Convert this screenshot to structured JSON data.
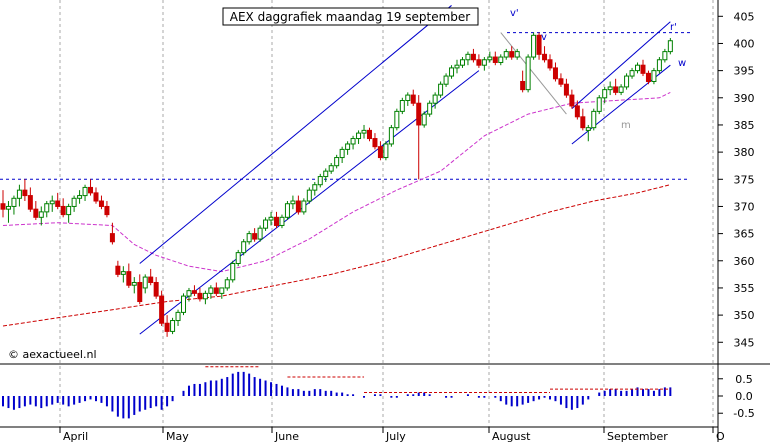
{
  "chart_data": [
    {
      "type": "candlestick",
      "title": "AEX daggrafiek maandag 19 september",
      "copyright": "© aexactueel.nl",
      "x_months": [
        "April",
        "May",
        "June",
        "July",
        "August",
        "September",
        "O"
      ],
      "y_ticks": [
        345,
        350,
        355,
        360,
        365,
        370,
        375,
        380,
        385,
        390,
        395,
        400,
        405
      ],
      "ylim": [
        341,
        408
      ],
      "grid": true,
      "annotations": [
        "v'",
        "v",
        "r'",
        "w",
        "m"
      ],
      "support_resistance_levels": [
        402,
        375
      ],
      "colors": {
        "up": "#008000",
        "down": "#cc0000",
        "moving_average_short": "#cc33cc",
        "moving_average_long": "#cc0000",
        "trendlines": "#0000cc",
        "levels": "#0000cc",
        "grid": "#aaaaaa"
      },
      "ohlc": [
        [
          370.5,
          373,
          368,
          369.5
        ],
        [
          369.5,
          371,
          367,
          370
        ],
        [
          370,
          372,
          368.5,
          371.5
        ],
        [
          371.5,
          374,
          370,
          373
        ],
        [
          373,
          375,
          371,
          372
        ],
        [
          372,
          373.5,
          369,
          369.5
        ],
        [
          369.5,
          371,
          367.5,
          368
        ],
        [
          368,
          370,
          366.5,
          369
        ],
        [
          369,
          371,
          368,
          370.5
        ],
        [
          370.5,
          372,
          369,
          371
        ],
        [
          371,
          372.5,
          369.5,
          370
        ],
        [
          370,
          371.5,
          368,
          368.5
        ],
        [
          368.5,
          370.5,
          367,
          370
        ],
        [
          370,
          372,
          369,
          371.5
        ],
        [
          371.5,
          373,
          370.5,
          372
        ],
        [
          372,
          374,
          371,
          373.5
        ],
        [
          373.5,
          375,
          372,
          372.5
        ],
        [
          372.5,
          373.5,
          370.5,
          371
        ],
        [
          371,
          372,
          369.5,
          370
        ],
        [
          370,
          371,
          368,
          368.5
        ],
        [
          365,
          367,
          363,
          363.5
        ],
        [
          359,
          360,
          357,
          357.5
        ],
        [
          357.5,
          359,
          356,
          358
        ],
        [
          358,
          359.5,
          355,
          355.5
        ],
        [
          355.5,
          357,
          354,
          356
        ],
        [
          356,
          357.5,
          352,
          352.5
        ],
        [
          355,
          357.5,
          354,
          357
        ],
        [
          357,
          358.5,
          355.5,
          356
        ],
        [
          356,
          357,
          353,
          353.5
        ],
        [
          353.5,
          354.5,
          348,
          348.5
        ],
        [
          348.5,
          350,
          346,
          347
        ],
        [
          347,
          349.5,
          346.5,
          349
        ],
        [
          349,
          351,
          348,
          350.5
        ],
        [
          350.5,
          354,
          350,
          353.5
        ],
        [
          353.5,
          355,
          352.5,
          354.5
        ],
        [
          354.5,
          355.5,
          353.5,
          354
        ],
        [
          354,
          355,
          352.5,
          353
        ],
        [
          353,
          354.5,
          352,
          354
        ],
        [
          354,
          355.5,
          353,
          355
        ],
        [
          355,
          356,
          353.5,
          354
        ],
        [
          354,
          355,
          353,
          355
        ],
        [
          355,
          357,
          354.5,
          356.5
        ],
        [
          356.5,
          360,
          356,
          359.5
        ],
        [
          359.5,
          362,
          359,
          361.5
        ],
        [
          361.5,
          364,
          361,
          363.5
        ],
        [
          363.5,
          365.5,
          363,
          365
        ],
        [
          365,
          366,
          363.5,
          364
        ],
        [
          364,
          366.5,
          363.5,
          366
        ],
        [
          366,
          368,
          365.5,
          367.5
        ],
        [
          367.5,
          369,
          366.5,
          368
        ],
        [
          368,
          369,
          366,
          366.5
        ],
        [
          366.5,
          368.5,
          366,
          368
        ],
        [
          368,
          371,
          367.5,
          370.5
        ],
        [
          370.5,
          372,
          369.5,
          371
        ],
        [
          371,
          372,
          368.5,
          369
        ],
        [
          369,
          371.5,
          368.5,
          371
        ],
        [
          371,
          373.5,
          370.5,
          373
        ],
        [
          373,
          374.5,
          372,
          374
        ],
        [
          374,
          376,
          373.5,
          375.5
        ],
        [
          375.5,
          377,
          374.5,
          376.5
        ],
        [
          376.5,
          378,
          376,
          377.5
        ],
        [
          377.5,
          379.5,
          377,
          379
        ],
        [
          379,
          381,
          378,
          380.5
        ],
        [
          380.5,
          382,
          379.5,
          381.5
        ],
        [
          381.5,
          383,
          380.5,
          382.5
        ],
        [
          382.5,
          384,
          381.5,
          383.5
        ],
        [
          383.5,
          385,
          382.5,
          384
        ],
        [
          384,
          384.5,
          382,
          382.5
        ],
        [
          382.5,
          383.5,
          380.5,
          381
        ],
        [
          381,
          382,
          378.5,
          379
        ],
        [
          379,
          382,
          378.5,
          381.5
        ],
        [
          381.5,
          385,
          381,
          384.5
        ],
        [
          384.5,
          388,
          384,
          387.5
        ],
        [
          387.5,
          390,
          387,
          389.5
        ],
        [
          389.5,
          391,
          388.5,
          390.5
        ],
        [
          390.5,
          391.5,
          388.5,
          389
        ],
        [
          389,
          390.5,
          375,
          385
        ],
        [
          385,
          387.5,
          384.5,
          387
        ],
        [
          387,
          389.5,
          386.5,
          389
        ],
        [
          389,
          391,
          388,
          390.5
        ],
        [
          390.5,
          393,
          390,
          392.5
        ],
        [
          392.5,
          394.5,
          392,
          394
        ],
        [
          394,
          396,
          393.5,
          395.5
        ],
        [
          395.5,
          397,
          394.5,
          396
        ],
        [
          396,
          397.5,
          395.5,
          397
        ],
        [
          397,
          398.5,
          396,
          398
        ],
        [
          398,
          399,
          396.5,
          397
        ],
        [
          397,
          398,
          395.5,
          396
        ],
        [
          396,
          397.5,
          395,
          397
        ],
        [
          397,
          398.5,
          396.5,
          397.5
        ],
        [
          397.5,
          398.5,
          396,
          396.5
        ],
        [
          396.5,
          398,
          396,
          397.5
        ],
        [
          397.5,
          399,
          397,
          398.5
        ],
        [
          398.5,
          399.5,
          397,
          397.5
        ],
        [
          397.5,
          399,
          397,
          398.5
        ],
        [
          393,
          395,
          391,
          391.5
        ],
        [
          391.5,
          398,
          391,
          397.5
        ],
        [
          397.5,
          402,
          397,
          401.5
        ],
        [
          401.5,
          402,
          397,
          398
        ],
        [
          398,
          399.5,
          396.5,
          397
        ],
        [
          397,
          398,
          395,
          395.5
        ],
        [
          395.5,
          396.5,
          393,
          393.5
        ],
        [
          393.5,
          394.5,
          392,
          392.5
        ],
        [
          392.5,
          393.5,
          390,
          390.5
        ],
        [
          390.5,
          391.5,
          388,
          388.5
        ],
        [
          388.5,
          389.5,
          386,
          386.5
        ],
        [
          386.5,
          388,
          384,
          384.5
        ],
        [
          384,
          385,
          382,
          384.5
        ],
        [
          384.5,
          388,
          384,
          387.5
        ],
        [
          387.5,
          390.5,
          387,
          390
        ],
        [
          390,
          392,
          389,
          391.5
        ],
        [
          391.5,
          393,
          390.5,
          392
        ],
        [
          392,
          393.5,
          390.5,
          391
        ],
        [
          391,
          392.5,
          390.5,
          392
        ],
        [
          392,
          394.5,
          391.5,
          394
        ],
        [
          394,
          395.5,
          393.5,
          395
        ],
        [
          395,
          396.5,
          394.5,
          396
        ],
        [
          396,
          397,
          394,
          394.5
        ],
        [
          394.5,
          395,
          392.5,
          393
        ],
        [
          393,
          395.5,
          392.5,
          395
        ],
        [
          395,
          397.5,
          394.5,
          397
        ],
        [
          397,
          399,
          396.5,
          398.5
        ],
        [
          398.5,
          401,
          398,
          400.5
        ]
      ],
      "moving_average_short": [
        [
          0,
          366.5
        ],
        [
          10,
          367
        ],
        [
          20,
          366.5
        ],
        [
          24,
          363
        ],
        [
          28,
          361
        ],
        [
          34,
          359
        ],
        [
          40,
          358
        ],
        [
          48,
          360
        ],
        [
          56,
          364
        ],
        [
          64,
          369
        ],
        [
          72,
          373
        ],
        [
          80,
          376.5
        ],
        [
          88,
          383
        ],
        [
          96,
          387
        ],
        [
          104,
          389
        ],
        [
          112,
          389.5
        ],
        [
          120,
          390
        ],
        [
          122,
          391
        ]
      ],
      "moving_average_long": [
        [
          0,
          348
        ],
        [
          10,
          349.5
        ],
        [
          20,
          351
        ],
        [
          30,
          352.5
        ],
        [
          40,
          353.5
        ],
        [
          50,
          355.5
        ],
        [
          60,
          357.5
        ],
        [
          70,
          360
        ],
        [
          80,
          363
        ],
        [
          90,
          366
        ],
        [
          100,
          369
        ],
        [
          108,
          371
        ],
        [
          116,
          372.5
        ],
        [
          122,
          374
        ]
      ],
      "trendlines": [
        {
          "name": "v'",
          "from": [
            25,
            359.5
          ],
          "to": [
            82,
            407
          ]
        },
        {
          "name": "",
          "from": [
            25,
            346.5
          ],
          "to": [
            87,
            395
          ]
        },
        {
          "name": "",
          "from": [
            91,
            402
          ],
          "to": [
            103,
            387
          ]
        },
        {
          "name": "r'",
          "from": [
            104,
            388
          ],
          "to": [
            122,
            404
          ]
        },
        {
          "name": "",
          "from": [
            104,
            381.5
          ],
          "to": [
            122,
            396
          ]
        }
      ],
      "oscillator": {
        "ylim": [
          -0.9,
          0.9
        ],
        "y_ticks": [
          0.5,
          0.0,
          -0.5
        ],
        "y_tick_labels": [
          "0.5",
          "0.0",
          "-0.5"
        ],
        "values": [
          -0.3,
          -0.35,
          -0.4,
          -0.35,
          -0.3,
          -0.25,
          -0.3,
          -0.35,
          -0.3,
          -0.25,
          -0.2,
          -0.25,
          -0.3,
          -0.25,
          -0.2,
          -0.15,
          -0.1,
          -0.15,
          -0.2,
          -0.3,
          -0.45,
          -0.6,
          -0.65,
          -0.65,
          -0.55,
          -0.45,
          -0.4,
          -0.35,
          -0.3,
          -0.4,
          -0.3,
          -0.15,
          0.0,
          0.15,
          0.3,
          0.35,
          0.35,
          0.4,
          0.45,
          0.45,
          0.5,
          0.55,
          0.65,
          0.7,
          0.7,
          0.65,
          0.55,
          0.5,
          0.45,
          0.4,
          0.35,
          0.3,
          0.25,
          0.2,
          0.2,
          0.15,
          0.15,
          0.2,
          0.2,
          0.15,
          0.15,
          0.1,
          0.1,
          0.05,
          0.05,
          0.0,
          -0.05,
          0.0,
          0.05,
          0.05,
          0.0,
          -0.05,
          -0.05,
          0.0,
          0.05,
          0.05,
          0.1,
          0.1,
          0.05,
          0.0,
          0.0,
          -0.05,
          -0.05,
          0.0,
          0.0,
          0.05,
          0.0,
          -0.05,
          -0.05,
          0.0,
          -0.05,
          -0.15,
          -0.25,
          -0.3,
          -0.3,
          -0.25,
          -0.2,
          -0.15,
          -0.1,
          -0.05,
          -0.1,
          -0.15,
          -0.25,
          -0.35,
          -0.4,
          -0.35,
          -0.25,
          -0.1,
          0.0,
          0.1,
          0.15,
          0.2,
          0.2,
          0.15,
          0.15,
          0.2,
          0.25,
          0.2,
          0.2,
          0.15,
          0.2,
          0.25,
          0.25
        ],
        "signal_segments": [
          [
            37,
            47,
            0.85
          ],
          [
            52,
            66,
            0.55
          ],
          [
            66,
            100,
            0.1
          ],
          [
            100,
            122,
            0.2
          ]
        ]
      }
    }
  ]
}
